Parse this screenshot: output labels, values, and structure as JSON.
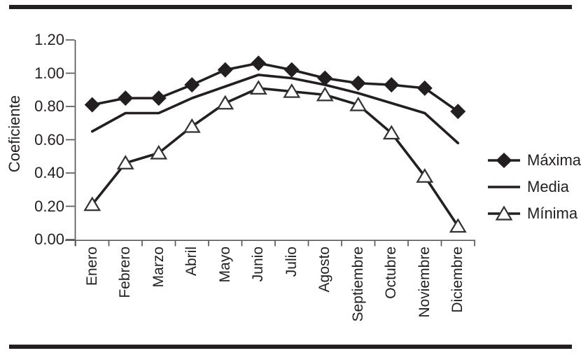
{
  "chart_data": {
    "type": "line",
    "title": "",
    "xlabel": "",
    "ylabel": "Coeficiente",
    "categories": [
      "Enero",
      "Febrero",
      "Marzo",
      "Abril",
      "Mayo",
      "Junio",
      "Julio",
      "Agosto",
      "Septiembre",
      "Octubre",
      "Noviembre",
      "Diciembre"
    ],
    "series": [
      {
        "name": "Máxima",
        "marker": "filled-diamond",
        "values": [
          0.81,
          0.85,
          0.85,
          0.93,
          1.02,
          1.06,
          1.02,
          0.97,
          0.94,
          0.93,
          0.91,
          0.77
        ]
      },
      {
        "name": "Media",
        "marker": "none",
        "values": [
          0.65,
          0.76,
          0.76,
          0.85,
          0.92,
          0.99,
          0.97,
          0.93,
          0.88,
          0.82,
          0.76,
          0.58
        ]
      },
      {
        "name": "Mínima",
        "marker": "open-triangle",
        "values": [
          0.21,
          0.46,
          0.52,
          0.68,
          0.82,
          0.91,
          0.89,
          0.87,
          0.81,
          0.64,
          0.38,
          0.08
        ]
      }
    ],
    "ylim": [
      0,
      1.2
    ],
    "ytick_labels": [
      "1.20",
      "1.00",
      "0.80",
      "0.60",
      "0.40",
      "0.20",
      "0.00"
    ],
    "grid": false,
    "legend_position": "right",
    "colors": {
      "series": "#231f20",
      "axis": "#58595b",
      "text": "#231f20",
      "open_marker_fill": "#ffffff",
      "open_marker_stroke": "#333333",
      "background": "#ffffff"
    }
  }
}
